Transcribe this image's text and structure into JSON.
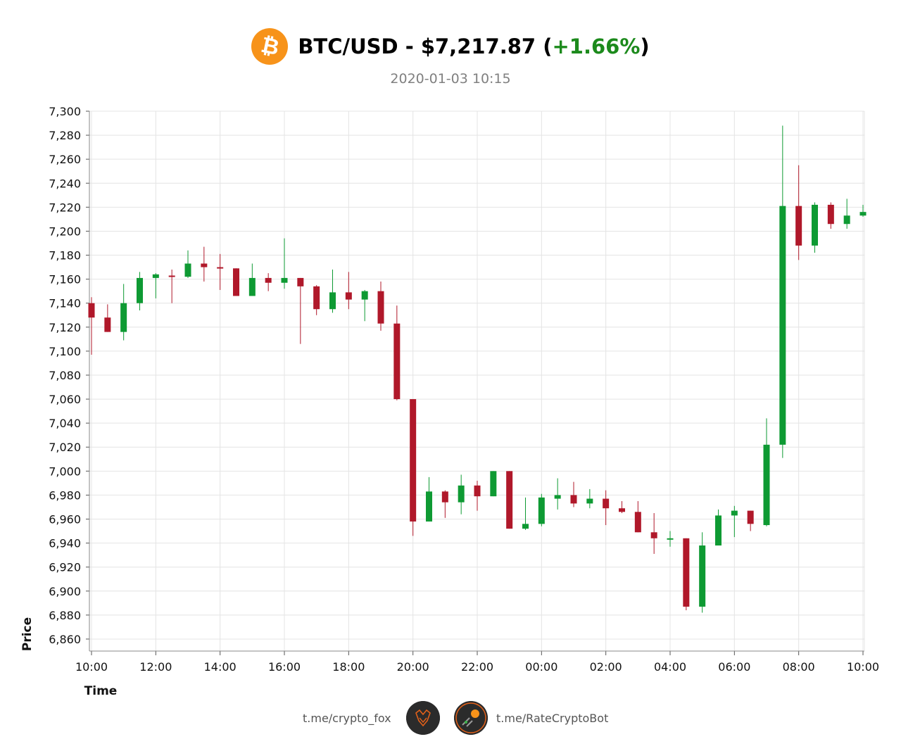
{
  "header": {
    "pair_prefix": "BTC/USD - $7,217.87 (",
    "change": "+1.66%",
    "pair_suffix": ")",
    "logo_glyph": "₿",
    "logo_color": "#f7931a",
    "change_color": "#1c8a1c"
  },
  "subtitle": "2020-01-03 10:15",
  "footer": {
    "left_link": "t.me/crypto_fox",
    "right_link": "t.me/RateCryptoBot",
    "left_avatar_icon": "fox-icon",
    "right_avatar_icon": "bitcoin-rocket-icon"
  },
  "chart_data": {
    "type": "candlestick",
    "xlabel": "Time",
    "ylabel": "Price",
    "ylim": [
      6850,
      7300
    ],
    "yticks": [
      7300,
      7280,
      7260,
      7240,
      7220,
      7200,
      7180,
      7160,
      7140,
      7120,
      7100,
      7080,
      7060,
      7040,
      7020,
      7000,
      6980,
      6960,
      6940,
      6920,
      6900,
      6880,
      6860
    ],
    "ytick_labels": [
      "7,300",
      "7,280",
      "7,260",
      "7,240",
      "7,220",
      "7,200",
      "7,180",
      "7,160",
      "7,140",
      "7,120",
      "7,100",
      "7,080",
      "7,060",
      "7,040",
      "7,020",
      "7,000",
      "6,980",
      "6,960",
      "6,940",
      "6,920",
      "6,900",
      "6,880",
      "6,860"
    ],
    "xtick_labels": [
      "10:00",
      "12:00",
      "14:00",
      "16:00",
      "18:00",
      "20:00",
      "22:00",
      "00:00",
      "02:00",
      "04:00",
      "06:00",
      "08:00",
      "10:00"
    ],
    "grid": true,
    "up_color": "#0e9a33",
    "down_color": "#b0182a",
    "candles": [
      {
        "time": "10:00",
        "open": 7140,
        "high": 7145,
        "low": 7097,
        "close": 7128
      },
      {
        "time": "10:30",
        "open": 7128,
        "high": 7139,
        "low": 7116,
        "close": 7116
      },
      {
        "time": "11:00",
        "open": 7116,
        "high": 7156,
        "low": 7109,
        "close": 7140
      },
      {
        "time": "11:30",
        "open": 7140,
        "high": 7166,
        "low": 7134,
        "close": 7161
      },
      {
        "time": "12:00",
        "open": 7161,
        "high": 7165,
        "low": 7144,
        "close": 7164
      },
      {
        "time": "12:30",
        "open": 7163,
        "high": 7168,
        "low": 7140,
        "close": 7162
      },
      {
        "time": "13:00",
        "open": 7162,
        "high": 7184,
        "low": 7161,
        "close": 7173
      },
      {
        "time": "13:30",
        "open": 7173,
        "high": 7187,
        "low": 7158,
        "close": 7170
      },
      {
        "time": "14:00",
        "open": 7170,
        "high": 7181,
        "low": 7151,
        "close": 7169
      },
      {
        "time": "14:30",
        "open": 7169,
        "high": 7169,
        "low": 7146,
        "close": 7146
      },
      {
        "time": "15:00",
        "open": 7146,
        "high": 7173,
        "low": 7146,
        "close": 7161
      },
      {
        "time": "15:30",
        "open": 7161,
        "high": 7165,
        "low": 7150,
        "close": 7157
      },
      {
        "time": "16:00",
        "open": 7157,
        "high": 7194,
        "low": 7152,
        "close": 7161
      },
      {
        "time": "16:30",
        "open": 7161,
        "high": 7161,
        "low": 7106,
        "close": 7154
      },
      {
        "time": "17:00",
        "open": 7154,
        "high": 7155,
        "low": 7130,
        "close": 7135
      },
      {
        "time": "17:30",
        "open": 7135,
        "high": 7168,
        "low": 7132,
        "close": 7149
      },
      {
        "time": "18:00",
        "open": 7149,
        "high": 7166,
        "low": 7135,
        "close": 7143
      },
      {
        "time": "18:30",
        "open": 7143,
        "high": 7151,
        "low": 7125,
        "close": 7150
      },
      {
        "time": "19:00",
        "open": 7150,
        "high": 7158,
        "low": 7117,
        "close": 7123
      },
      {
        "time": "19:30",
        "open": 7123,
        "high": 7138,
        "low": 7059,
        "close": 7060
      },
      {
        "time": "20:00",
        "open": 7060,
        "high": 7060,
        "low": 6946,
        "close": 6958
      },
      {
        "time": "20:30",
        "open": 6958,
        "high": 6995,
        "low": 6958,
        "close": 6983
      },
      {
        "time": "21:00",
        "open": 6983,
        "high": 6984,
        "low": 6961,
        "close": 6974
      },
      {
        "time": "21:30",
        "open": 6974,
        "high": 6997,
        "low": 6964,
        "close": 6988
      },
      {
        "time": "22:00",
        "open": 6988,
        "high": 6992,
        "low": 6967,
        "close": 6979
      },
      {
        "time": "22:30",
        "open": 6979,
        "high": 7000,
        "low": 6979,
        "close": 7000
      },
      {
        "time": "23:00",
        "open": 7000,
        "high": 7000,
        "low": 6952,
        "close": 6952
      },
      {
        "time": "23:30",
        "open": 6952,
        "high": 6978,
        "low": 6951,
        "close": 6956
      },
      {
        "time": "00:00",
        "open": 6956,
        "high": 6981,
        "low": 6954,
        "close": 6978
      },
      {
        "time": "00:30",
        "open": 6977,
        "high": 6994,
        "low": 6968,
        "close": 6980
      },
      {
        "time": "01:00",
        "open": 6980,
        "high": 6991,
        "low": 6970,
        "close": 6973
      },
      {
        "time": "01:30",
        "open": 6973,
        "high": 6985,
        "low": 6969,
        "close": 6977
      },
      {
        "time": "02:00",
        "open": 6977,
        "high": 6984,
        "low": 6955,
        "close": 6969
      },
      {
        "time": "02:30",
        "open": 6969,
        "high": 6975,
        "low": 6965,
        "close": 6966
      },
      {
        "time": "03:00",
        "open": 6966,
        "high": 6975,
        "low": 6949,
        "close": 6949
      },
      {
        "time": "03:30",
        "open": 6949,
        "high": 6965,
        "low": 6931,
        "close": 6944
      },
      {
        "time": "04:00",
        "open": 6944,
        "high": 6950,
        "low": 6937,
        "close": 6944
      },
      {
        "time": "04:30",
        "open": 6944,
        "high": 6944,
        "low": 6884,
        "close": 6887
      },
      {
        "time": "05:00",
        "open": 6887,
        "high": 6949,
        "low": 6882,
        "close": 6938
      },
      {
        "time": "05:30",
        "open": 6938,
        "high": 6968,
        "low": 6938,
        "close": 6963
      },
      {
        "time": "06:00",
        "open": 6963,
        "high": 6971,
        "low": 6945,
        "close": 6967
      },
      {
        "time": "06:30",
        "open": 6967,
        "high": 6967,
        "low": 6950,
        "close": 6956
      },
      {
        "time": "07:00",
        "open": 6955,
        "high": 7044,
        "low": 6954,
        "close": 7022
      },
      {
        "time": "07:30",
        "open": 7022,
        "high": 7288,
        "low": 7011,
        "close": 7221
      },
      {
        "time": "08:00",
        "open": 7221,
        "high": 7255,
        "low": 7176,
        "close": 7188
      },
      {
        "time": "08:30",
        "open": 7188,
        "high": 7224,
        "low": 7182,
        "close": 7222
      },
      {
        "time": "09:00",
        "open": 7222,
        "high": 7224,
        "low": 7202,
        "close": 7206
      },
      {
        "time": "09:30",
        "open": 7206,
        "high": 7227,
        "low": 7202,
        "close": 7213
      },
      {
        "time": "10:00",
        "open": 7213,
        "high": 7222,
        "low": 7212,
        "close": 7216
      }
    ]
  }
}
